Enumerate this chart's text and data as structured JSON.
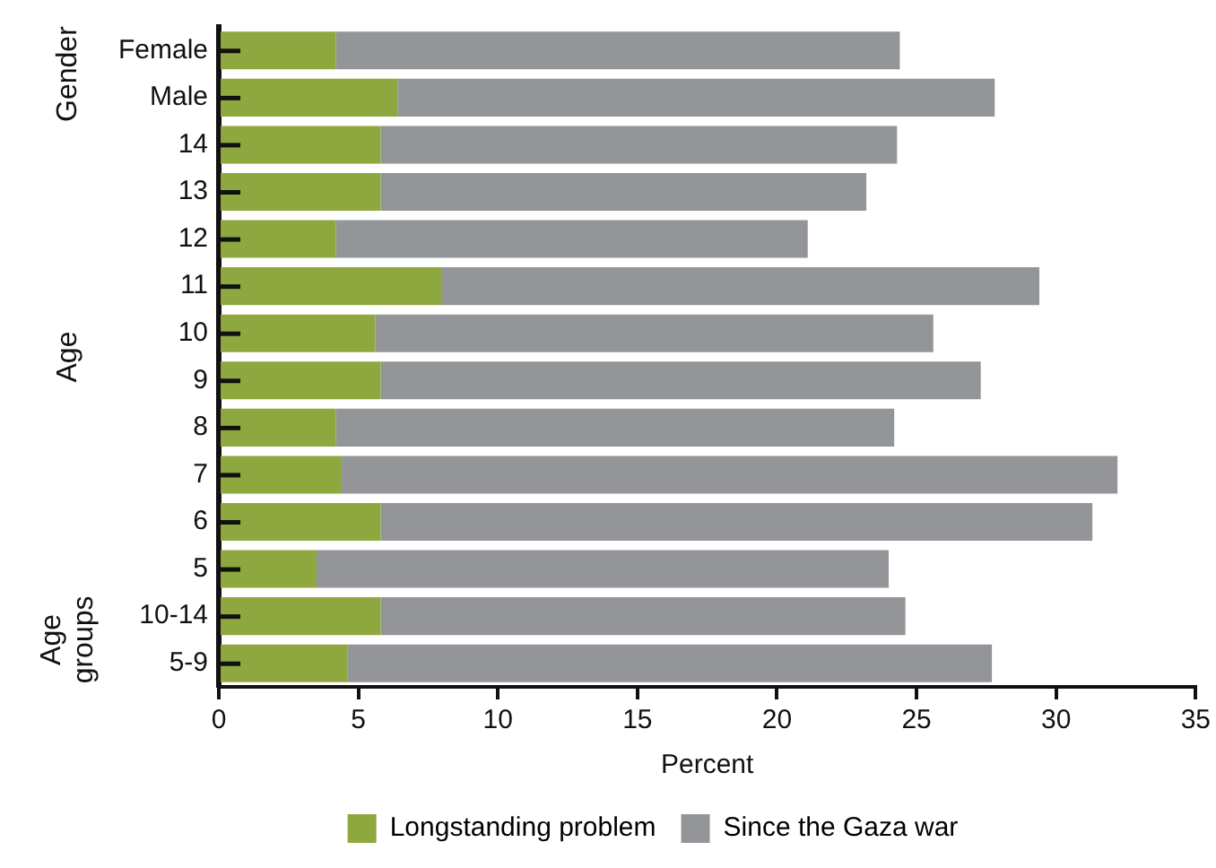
{
  "chart_data": {
    "type": "bar",
    "orientation": "horizontal",
    "stacked": true,
    "xlabel": "Percent",
    "categories": [
      "Female",
      "Male",
      "14",
      "13",
      "12",
      "11",
      "10",
      "9",
      "8",
      "7",
      "6",
      "5",
      "10-14",
      "5-9"
    ],
    "series": [
      {
        "name": "Longstanding problem",
        "color": "#8ea83f",
        "values": [
          4.2,
          6.4,
          5.8,
          5.8,
          4.2,
          8.0,
          5.6,
          5.8,
          4.2,
          4.4,
          5.8,
          3.5,
          5.8,
          4.6
        ]
      },
      {
        "name": "Since the Gaza war",
        "color": "#939598",
        "values": [
          20.2,
          21.4,
          18.5,
          17.4,
          16.9,
          21.4,
          20.0,
          21.5,
          20.0,
          27.8,
          25.5,
          20.5,
          18.8,
          23.1
        ]
      }
    ],
    "xlim": [
      0,
      35
    ],
    "xticks": [
      0,
      5,
      10,
      15,
      20,
      25,
      30,
      35
    ],
    "grid": false,
    "legend": "bottom",
    "annotations": [
      "Gender",
      "Age",
      "Age groups"
    ]
  }
}
